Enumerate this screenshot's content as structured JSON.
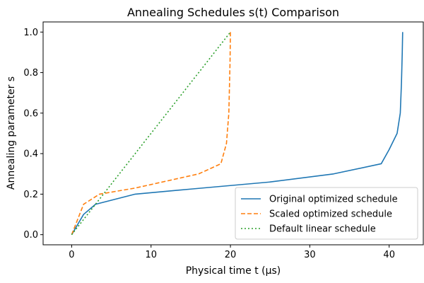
{
  "chart_data": {
    "type": "line",
    "title": "Annealing Schedules s(t) Comparison",
    "xlabel": "Physical time t (µs)",
    "ylabel": "Annealing parameter s",
    "xlim": [
      -3.6,
      44.3
    ],
    "ylim": [
      -0.05,
      1.05
    ],
    "x_ticks": [
      0,
      10,
      20,
      30,
      40
    ],
    "y_ticks": [
      0.0,
      0.2,
      0.4,
      0.6,
      0.8,
      1.0
    ],
    "x_tick_labels": [
      "0",
      "10",
      "20",
      "30",
      "40"
    ],
    "y_tick_labels": [
      "0.0",
      "0.2",
      "0.4",
      "0.6",
      "0.8",
      "1.0"
    ],
    "grid": false,
    "legend_position": "bottom-right",
    "series": [
      {
        "name": "Original optimized schedule",
        "color": "#1f77b4",
        "style": "solid",
        "x": [
          0,
          1.5,
          3,
          5,
          8,
          15,
          25,
          33,
          39,
          40,
          41,
          41.4,
          41.55,
          41.65,
          41.7
        ],
        "y": [
          0,
          0.1,
          0.15,
          0.17,
          0.2,
          0.225,
          0.26,
          0.3,
          0.35,
          0.42,
          0.5,
          0.6,
          0.75,
          0.9,
          1.0
        ]
      },
      {
        "name": "Scaled optimized schedule",
        "color": "#ff7f0e",
        "style": "dashed",
        "x": [
          0,
          1.5,
          3.5,
          8,
          16,
          18.8,
          19.5,
          19.8,
          19.95,
          20
        ],
        "y": [
          0,
          0.15,
          0.2,
          0.23,
          0.3,
          0.35,
          0.45,
          0.6,
          0.85,
          1.0
        ]
      },
      {
        "name": "Default linear schedule",
        "color": "#2ca02c",
        "style": "dotted",
        "x": [
          0,
          20
        ],
        "y": [
          0,
          1.0
        ]
      }
    ]
  }
}
